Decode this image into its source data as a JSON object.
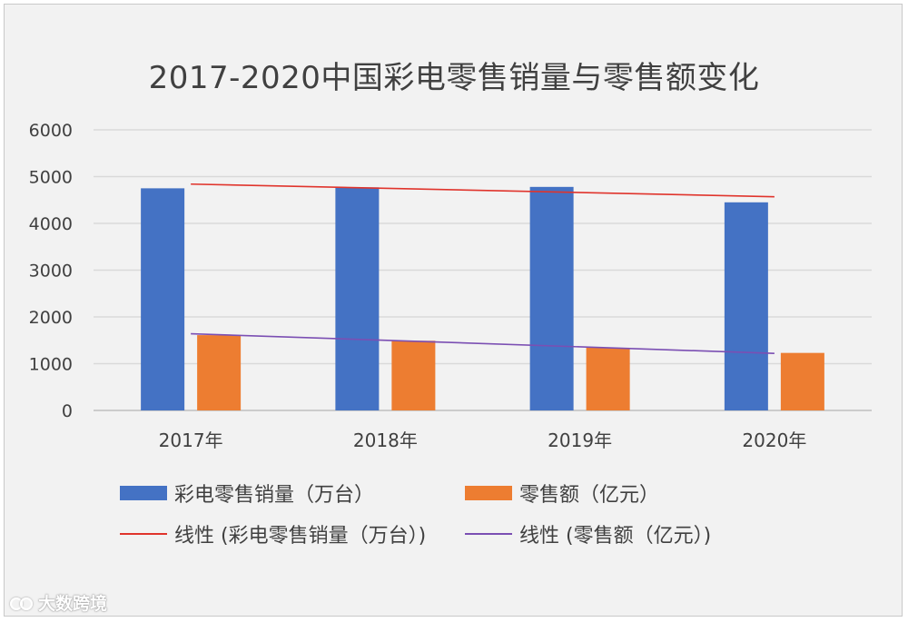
{
  "chart_data": {
    "type": "bar",
    "title": "2017-2020中国彩电零售销量与零售额变化",
    "categories": [
      "2017年",
      "2018年",
      "2019年",
      "2020年"
    ],
    "ylim": [
      0,
      6000
    ],
    "yticks": [
      0,
      1000,
      2000,
      3000,
      4000,
      5000,
      6000
    ],
    "grid": true,
    "legend_position": "bottom",
    "series": [
      {
        "name": "彩电零售销量（万台）",
        "type": "bar",
        "color": "#4472c4",
        "values": [
          4750,
          4770,
          4780,
          4450
        ]
      },
      {
        "name": "零售额（亿元）",
        "type": "bar",
        "color": "#ed7d31",
        "values": [
          1610,
          1490,
          1340,
          1230
        ]
      }
    ],
    "trendlines": [
      {
        "name": "线性 (彩电零售销量（万台）)",
        "color": "#e0342c",
        "start": 4840,
        "end": 4570
      },
      {
        "name": "线性 (零售额（亿元）)",
        "color": "#7b4fb3",
        "start": 1640,
        "end": 1220
      }
    ]
  },
  "watermark": {
    "text": "大数跨境",
    "icon": "speech-bubbles-icon"
  }
}
